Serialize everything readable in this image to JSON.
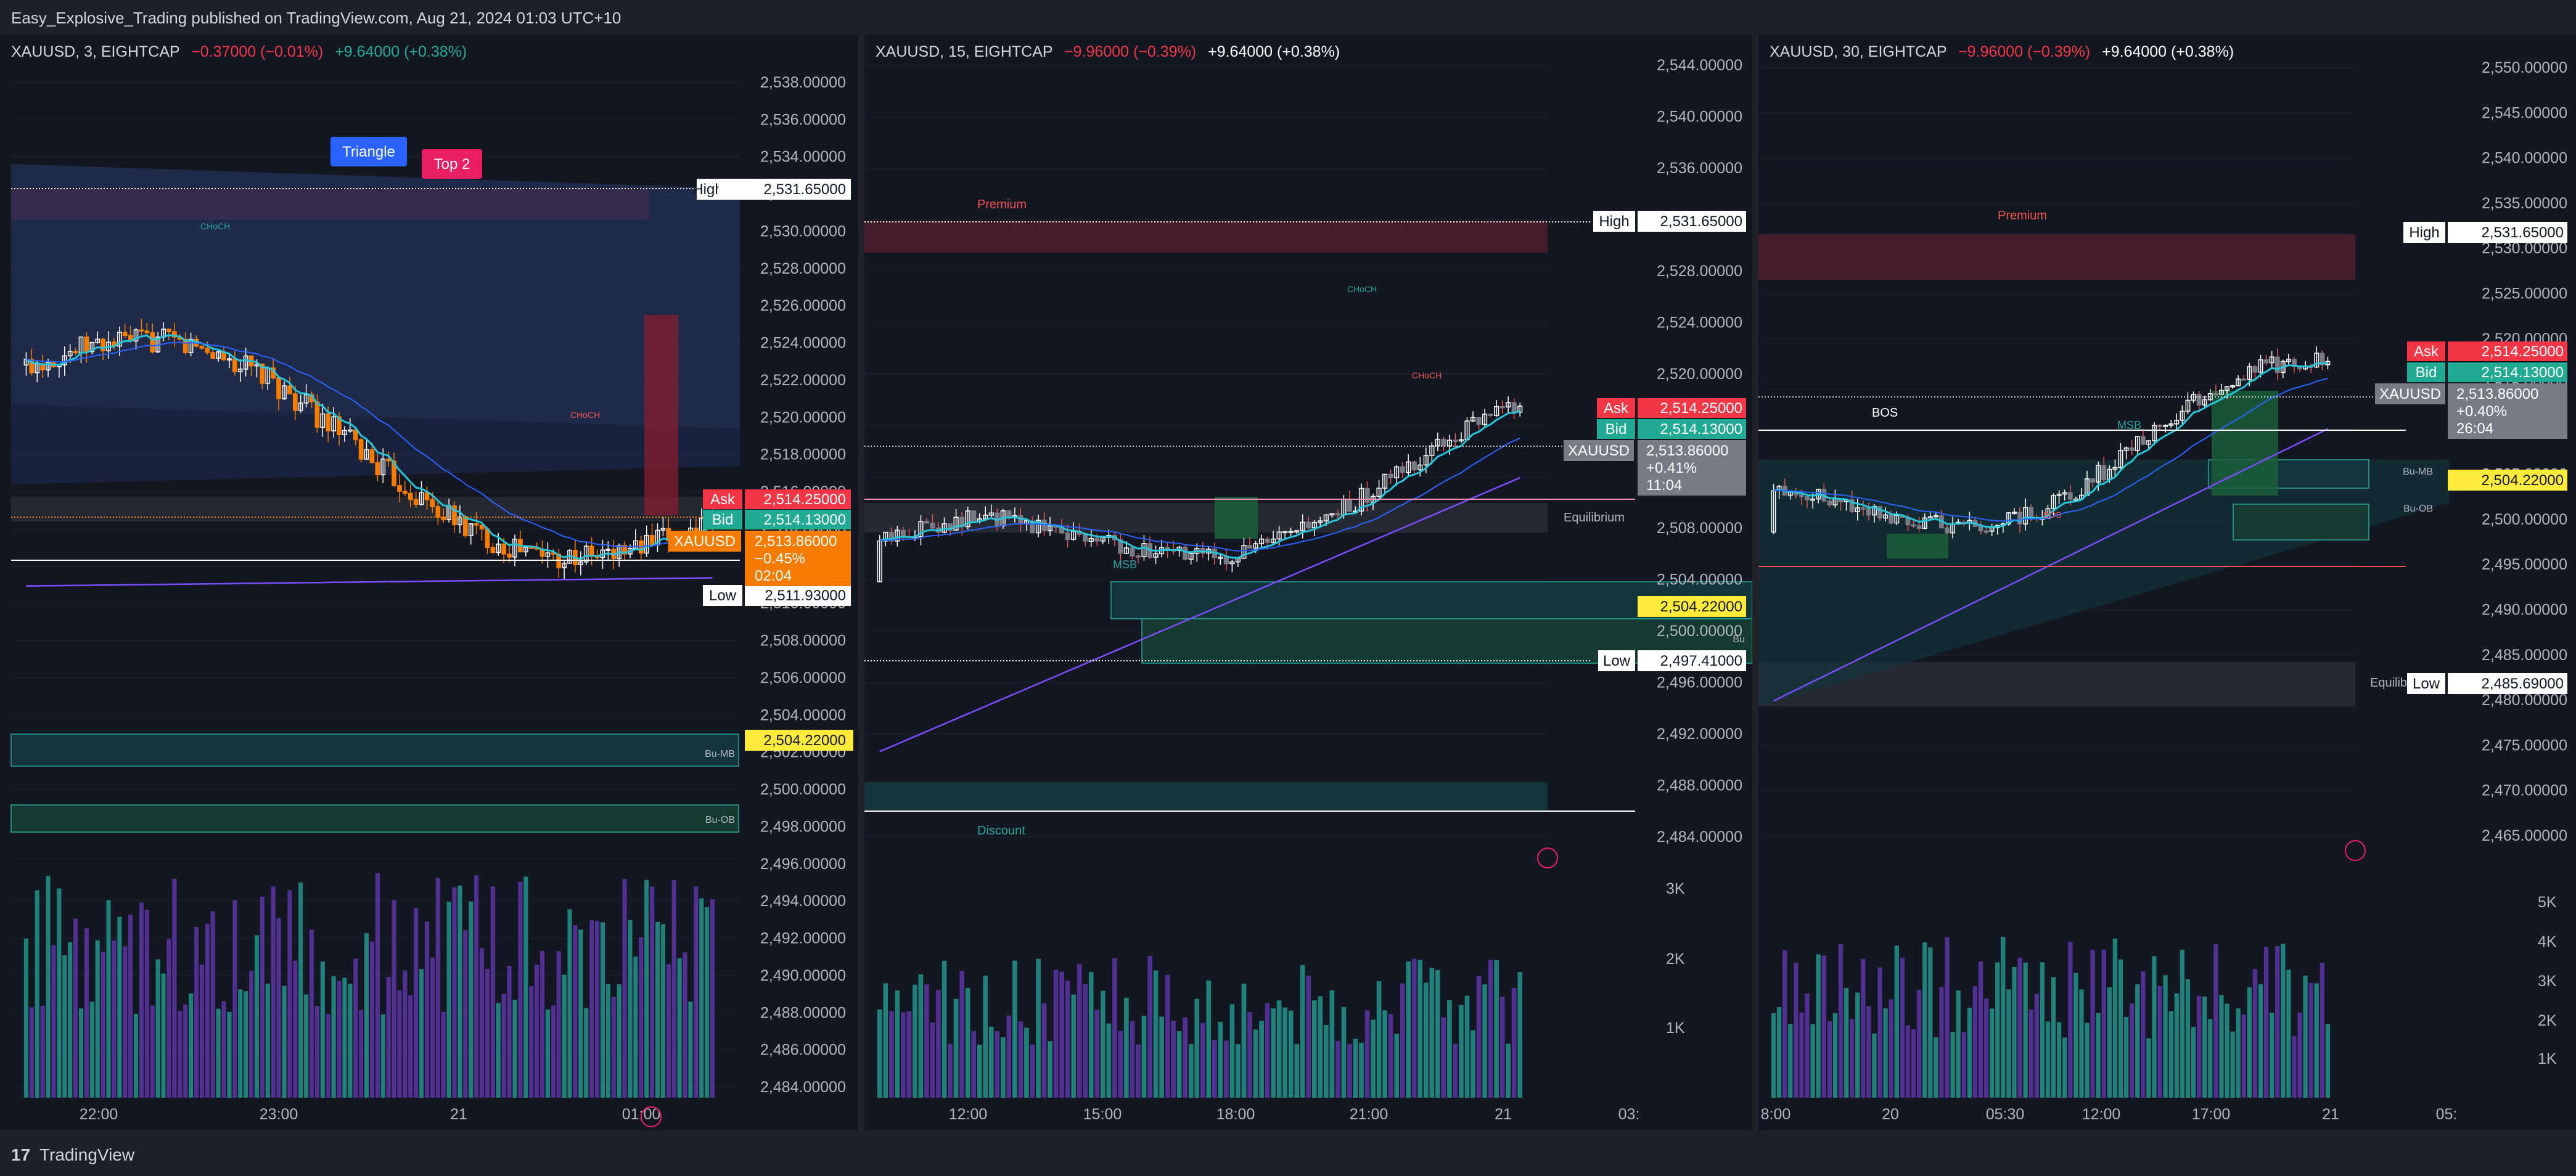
{
  "header": {
    "text": "Easy_Explosive_Trading published on TradingView.com, Aug 21, 2024 01:03 UTC+10"
  },
  "footer": {
    "logo": "17",
    "brand": "TradingView"
  },
  "colors": {
    "bg": "#131722",
    "up": "#ffffff",
    "down": "#f57c00",
    "ema_fast": "#26c6da",
    "ema_slow": "#2962ff",
    "ema_long": "#7c4dff",
    "vol_up": "#26a69a",
    "vol_down": "#673ab7",
    "ask": "#f23645",
    "bid": "#22ab94",
    "last": "#ffeb3b"
  },
  "chart_data": [
    {
      "type": "candlestick",
      "symbol": "XAUUSD, 3, EIGHTCAP",
      "change": "−0.37000 (−0.01%)",
      "change2": "+9.64000 (+0.38%)",
      "ylim": [
        2483.5,
        2539
      ],
      "y_ticks": [
        "2,538.00000",
        "2,536.00000",
        "2,534.00000",
        "2,532.00000",
        "2,530.00000",
        "2,528.00000",
        "2,526.00000",
        "2,524.00000",
        "2,522.00000",
        "2,520.00000",
        "2,518.00000",
        "2,516.00000",
        "2,514.00000",
        "2,512.00000",
        "2,510.00000",
        "2,508.00000",
        "2,506.00000",
        "2,504.00000",
        "2,502.00000",
        "2,500.00000",
        "2,498.00000",
        "2,496.00000",
        "2,494.00000",
        "2,492.00000",
        "2,490.00000",
        "2,488.00000",
        "2,486.00000",
        "2,484.00000"
      ],
      "x_ticks": [
        "22:00",
        "23:00",
        "21",
        "01:00"
      ],
      "labels": {
        "high": "High",
        "high_val": "2,531.65000",
        "low": "Low",
        "low_val": "2,511.93000",
        "ask": "Ask",
        "ask_val": "2,514.25000",
        "bid": "Bid",
        "bid_val": "2,514.13000",
        "sym": "XAUUSD",
        "last_val": "2,513.86000",
        "last_chg": "−0.45%",
        "last_time": "02:04",
        "tag_last": "2,504.22000",
        "triangle": "Triangle",
        "top2": "Top 2",
        "bumb": "Bu-MB",
        "buob": "Bu-OB",
        "choch1": "CHoCH",
        "choch2": "CHoCH"
      },
      "series": [
        {
          "name": "close",
          "start": 2523.4,
          "end": 2513.86
        }
      ]
    },
    {
      "type": "candlestick",
      "symbol": "XAUUSD, 15, EIGHTCAP",
      "change": "−9.96000 (−0.39%)",
      "change2": "+9.64000 (+0.38%)",
      "ylim": [
        2481,
        2546
      ],
      "y_ticks": [
        "2,544.00000",
        "2,540.00000",
        "2,536.00000",
        "2,532.00000",
        "2,528.00000",
        "2,524.00000",
        "2,520.00000",
        "2,516.00000",
        "2,512.00000",
        "2,508.00000",
        "2,504.00000",
        "2,500.00000",
        "2,496.00000",
        "2,492.00000",
        "2,488.00000",
        "2,484.00000"
      ],
      "vol_ticks": [
        "3K",
        "2K",
        "1K"
      ],
      "x_ticks": [
        "12:00",
        "15:00",
        "18:00",
        "21:00",
        "21",
        "03:"
      ],
      "labels": {
        "high": "High",
        "high_val": "2,531.65000",
        "low": "Low",
        "low_val": "2,497.41000",
        "ask": "Ask",
        "ask_val": "2,514.25000",
        "bid": "Bid",
        "bid_val": "2,514.13000",
        "sym": "XAUUSD",
        "last_val": "2,513.86000",
        "last_chg": "+0.41%",
        "last_time": "11:04",
        "tag_last": "2,504.22000",
        "premium": "Premium",
        "discount": "Discount",
        "equilibrium": "Equilibrium",
        "msb": "MSB",
        "choch1": "CHoCH",
        "choch2": "CHoCH",
        "bu1": "Bu",
        "bu2": "Bu"
      },
      "series": [
        {
          "name": "close",
          "start": 2502.5,
          "end": 2513.86
        }
      ]
    },
    {
      "type": "candlestick",
      "symbol": "XAUUSD, 30, EIGHTCAP",
      "change": "−9.96000 (−0.39%)",
      "change2": "+9.64000 (+0.38%)",
      "ylim": [
        2462,
        2553
      ],
      "y_ticks": [
        "2,550.00000",
        "2,545.00000",
        "2,540.00000",
        "2,535.00000",
        "2,530.00000",
        "2,525.00000",
        "2,520.00000",
        "2,515.00000",
        "2,510.00000",
        "2,505.00000",
        "2,500.00000",
        "2,495.00000",
        "2,490.00000",
        "2,485.00000",
        "2,480.00000",
        "2,475.00000",
        "2,470.00000",
        "2,465.00000"
      ],
      "vol_ticks": [
        "5K",
        "4K",
        "3K",
        "2K",
        "1K"
      ],
      "x_ticks": [
        "8:00",
        "20",
        "05:30",
        "12:00",
        "17:00",
        "21",
        "05:"
      ],
      "labels": {
        "high": "High",
        "high_val": "2,531.65000",
        "low": "Low",
        "low_val": "2,485.69000",
        "ask": "Ask",
        "ask_val": "2,514.25000",
        "bid": "Bid",
        "bid_val": "2,514.13000",
        "sym": "XAUUSD",
        "last_val": "2,513.86000",
        "last_chg": "+0.40%",
        "last_time": "26:04",
        "tag_last": "2,504.22000",
        "premium": "Premium",
        "equilibrium": "Equilibrium",
        "msb": "MSB",
        "bos1": "BOS",
        "bos2": "BOS",
        "bumb": "Bu-MB",
        "buob": "Bu-OB"
      },
      "series": [
        {
          "name": "close",
          "start": 2498,
          "end": 2513.86
        }
      ]
    }
  ]
}
